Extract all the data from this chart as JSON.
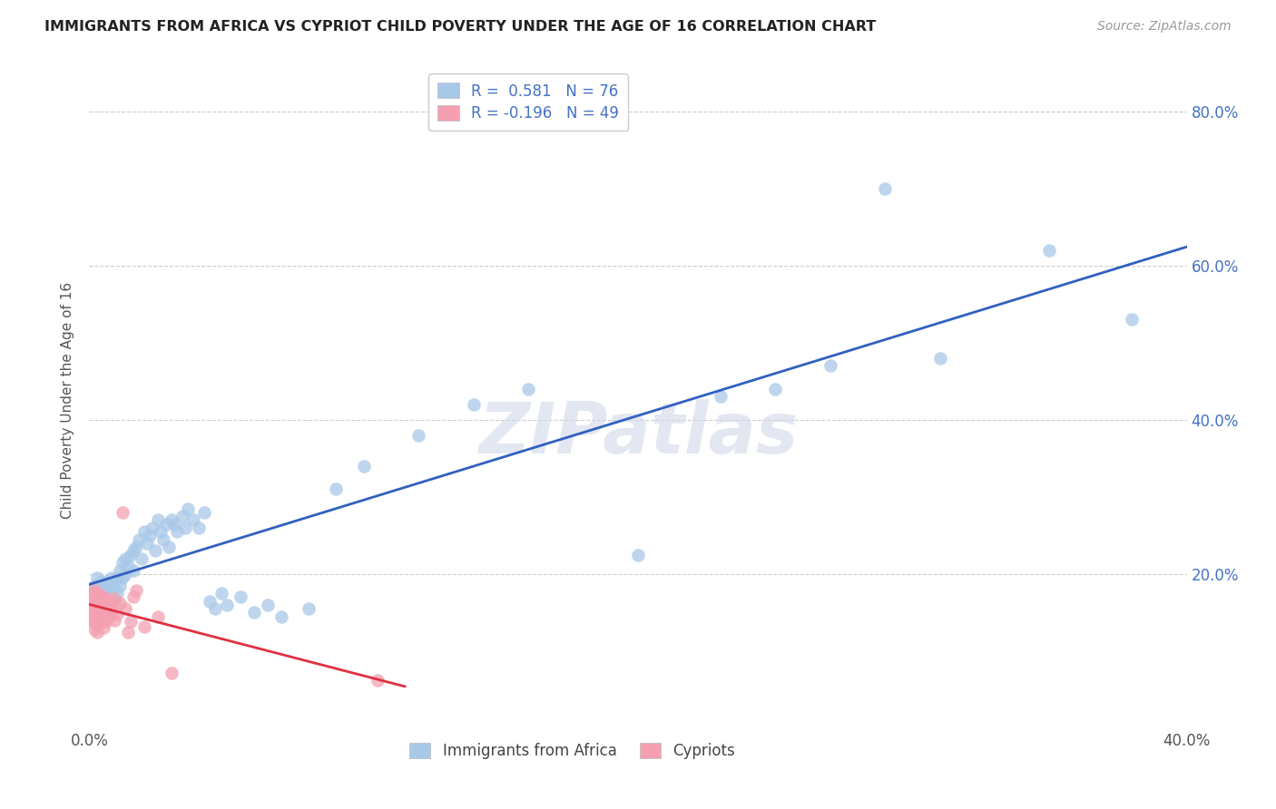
{
  "title": "IMMIGRANTS FROM AFRICA VS CYPRIOT CHILD POVERTY UNDER THE AGE OF 16 CORRELATION CHART",
  "source": "Source: ZipAtlas.com",
  "ylabel": "Child Poverty Under the Age of 16",
  "xlim": [
    0.0,
    0.4
  ],
  "ylim": [
    0.0,
    0.85
  ],
  "x_ticks": [
    0.0,
    0.05,
    0.1,
    0.15,
    0.2,
    0.25,
    0.3,
    0.35,
    0.4
  ],
  "y_ticks": [
    0.0,
    0.2,
    0.4,
    0.6,
    0.8
  ],
  "legend_blue_r": "R =  0.581",
  "legend_blue_n": "N = 76",
  "legend_pink_r": "R = -0.196",
  "legend_pink_n": "N = 49",
  "blue_color": "#a8c8e8",
  "pink_color": "#f4a0b0",
  "blue_line_color": "#3060c0",
  "pink_line_color": "#e03040",
  "watermark": "ZIPatlas",
  "blue_x": [
    0.001,
    0.002,
    0.002,
    0.003,
    0.003,
    0.003,
    0.004,
    0.004,
    0.004,
    0.005,
    0.005,
    0.006,
    0.006,
    0.006,
    0.007,
    0.007,
    0.008,
    0.008,
    0.009,
    0.009,
    0.01,
    0.01,
    0.011,
    0.011,
    0.012,
    0.012,
    0.013,
    0.013,
    0.014,
    0.015,
    0.016,
    0.016,
    0.017,
    0.018,
    0.019,
    0.02,
    0.021,
    0.022,
    0.023,
    0.024,
    0.025,
    0.026,
    0.027,
    0.028,
    0.029,
    0.03,
    0.031,
    0.032,
    0.034,
    0.035,
    0.036,
    0.038,
    0.04,
    0.042,
    0.044,
    0.046,
    0.048,
    0.05,
    0.055,
    0.06,
    0.065,
    0.07,
    0.08,
    0.09,
    0.1,
    0.12,
    0.14,
    0.16,
    0.2,
    0.23,
    0.25,
    0.27,
    0.29,
    0.31,
    0.35,
    0.38
  ],
  "blue_y": [
    0.175,
    0.185,
    0.165,
    0.195,
    0.175,
    0.165,
    0.19,
    0.175,
    0.165,
    0.185,
    0.17,
    0.19,
    0.175,
    0.16,
    0.185,
    0.17,
    0.195,
    0.175,
    0.185,
    0.165,
    0.195,
    0.175,
    0.205,
    0.185,
    0.215,
    0.195,
    0.22,
    0.2,
    0.21,
    0.225,
    0.23,
    0.205,
    0.235,
    0.245,
    0.22,
    0.255,
    0.24,
    0.25,
    0.26,
    0.23,
    0.27,
    0.255,
    0.245,
    0.265,
    0.235,
    0.27,
    0.265,
    0.255,
    0.275,
    0.26,
    0.285,
    0.27,
    0.26,
    0.28,
    0.165,
    0.155,
    0.175,
    0.16,
    0.17,
    0.15,
    0.16,
    0.145,
    0.155,
    0.31,
    0.34,
    0.38,
    0.42,
    0.44,
    0.225,
    0.43,
    0.44,
    0.47,
    0.7,
    0.48,
    0.62,
    0.53
  ],
  "pink_x": [
    0.001,
    0.001,
    0.001,
    0.001,
    0.001,
    0.002,
    0.002,
    0.002,
    0.002,
    0.002,
    0.002,
    0.003,
    0.003,
    0.003,
    0.003,
    0.003,
    0.003,
    0.004,
    0.004,
    0.004,
    0.004,
    0.005,
    0.005,
    0.005,
    0.005,
    0.005,
    0.006,
    0.006,
    0.006,
    0.006,
    0.007,
    0.007,
    0.007,
    0.008,
    0.008,
    0.009,
    0.009,
    0.01,
    0.011,
    0.012,
    0.013,
    0.014,
    0.015,
    0.016,
    0.017,
    0.02,
    0.025,
    0.03,
    0.105
  ],
  "pink_y": [
    0.175,
    0.168,
    0.16,
    0.15,
    0.14,
    0.178,
    0.168,
    0.158,
    0.148,
    0.138,
    0.128,
    0.175,
    0.165,
    0.155,
    0.145,
    0.135,
    0.125,
    0.172,
    0.162,
    0.152,
    0.142,
    0.17,
    0.16,
    0.15,
    0.14,
    0.13,
    0.168,
    0.158,
    0.148,
    0.138,
    0.165,
    0.155,
    0.145,
    0.162,
    0.15,
    0.168,
    0.14,
    0.148,
    0.162,
    0.28,
    0.155,
    0.125,
    0.138,
    0.17,
    0.178,
    0.132,
    0.145,
    0.072,
    0.062
  ]
}
